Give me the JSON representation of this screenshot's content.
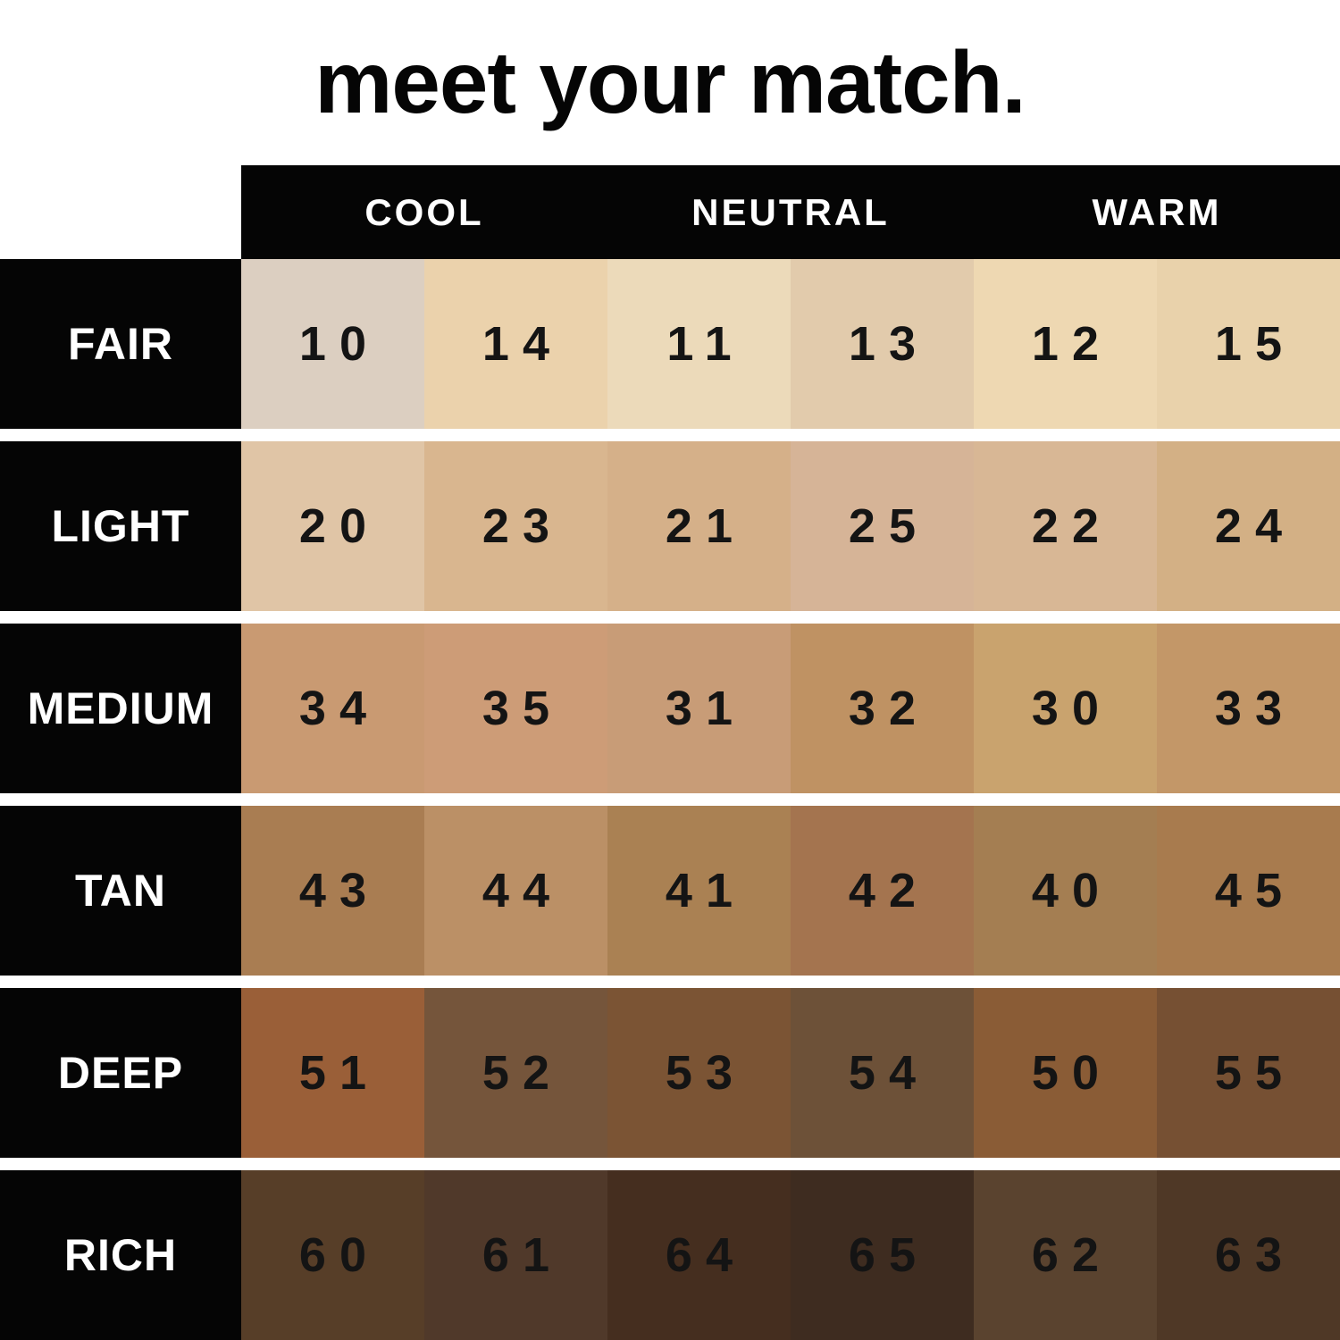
{
  "title": "meet your match.",
  "columns": [
    {
      "label": "COOL"
    },
    {
      "label": "NEUTRAL"
    },
    {
      "label": "WARM"
    }
  ],
  "rows": [
    {
      "label": "FAIR",
      "shades": [
        {
          "number": "10",
          "color": "#dccfc1"
        },
        {
          "number": "14",
          "color": "#ebd2ac"
        },
        {
          "number": "11",
          "color": "#ecdaba"
        },
        {
          "number": "13",
          "color": "#e2cbac"
        },
        {
          "number": "12",
          "color": "#eed8b2"
        },
        {
          "number": "15",
          "color": "#e9d2ab"
        }
      ]
    },
    {
      "label": "LIGHT",
      "shades": [
        {
          "number": "20",
          "color": "#e0c5a6"
        },
        {
          "number": "23",
          "color": "#d9b68f"
        },
        {
          "number": "21",
          "color": "#d5b089"
        },
        {
          "number": "25",
          "color": "#d6b497"
        },
        {
          "number": "22",
          "color": "#d8b795"
        },
        {
          "number": "24",
          "color": "#d3b085"
        }
      ]
    },
    {
      "label": "MEDIUM",
      "shades": [
        {
          "number": "34",
          "color": "#c99a72"
        },
        {
          "number": "35",
          "color": "#cd9c77"
        },
        {
          "number": "31",
          "color": "#c89c77"
        },
        {
          "number": "32",
          "color": "#bf9263"
        },
        {
          "number": "30",
          "color": "#c9a36e"
        },
        {
          "number": "33",
          "color": "#c39768"
        }
      ]
    },
    {
      "label": "TAN",
      "shades": [
        {
          "number": "43",
          "color": "#a97d52"
        },
        {
          "number": "44",
          "color": "#bb9066"
        },
        {
          "number": "41",
          "color": "#aa8153"
        },
        {
          "number": "42",
          "color": "#a4744f"
        },
        {
          "number": "40",
          "color": "#a47e52"
        },
        {
          "number": "45",
          "color": "#a87b4e"
        }
      ]
    },
    {
      "label": "DEEP",
      "shades": [
        {
          "number": "51",
          "color": "#9a5f38"
        },
        {
          "number": "52",
          "color": "#75553b"
        },
        {
          "number": "53",
          "color": "#7b5434"
        },
        {
          "number": "54",
          "color": "#6d5138"
        },
        {
          "number": "50",
          "color": "#8a5c36"
        },
        {
          "number": "55",
          "color": "#765033"
        }
      ]
    },
    {
      "label": "RICH",
      "shades": [
        {
          "number": "60",
          "color": "#573e28"
        },
        {
          "number": "61",
          "color": "#50392a"
        },
        {
          "number": "64",
          "color": "#452e1f"
        },
        {
          "number": "65",
          "color": "#3e2c20"
        },
        {
          "number": "62",
          "color": "#5a432f"
        },
        {
          "number": "63",
          "color": "#4f3826"
        }
      ]
    }
  ],
  "chart_data": {
    "type": "table",
    "title": "meet your match.",
    "column_groups": [
      "COOL",
      "NEUTRAL",
      "WARM"
    ],
    "row_labels": [
      "FAIR",
      "LIGHT",
      "MEDIUM",
      "TAN",
      "DEEP",
      "RICH"
    ],
    "cell_numbers": [
      [
        "10",
        "14",
        "11",
        "13",
        "12",
        "15"
      ],
      [
        "20",
        "23",
        "21",
        "25",
        "22",
        "24"
      ],
      [
        "34",
        "35",
        "31",
        "32",
        "30",
        "33"
      ],
      [
        "43",
        "44",
        "41",
        "42",
        "40",
        "45"
      ],
      [
        "51",
        "52",
        "53",
        "54",
        "50",
        "55"
      ],
      [
        "60",
        "61",
        "64",
        "65",
        "62",
        "63"
      ]
    ],
    "cell_colors": [
      [
        "#dccfc1",
        "#ebd2ac",
        "#ecdaba",
        "#e2cbac",
        "#eed8b2",
        "#e9d2ab"
      ],
      [
        "#e0c5a6",
        "#d9b68f",
        "#d5b089",
        "#d6b497",
        "#d8b795",
        "#d3b085"
      ],
      [
        "#c99a72",
        "#cd9c77",
        "#c89c77",
        "#bf9263",
        "#c9a36e",
        "#c39768"
      ],
      [
        "#a97d52",
        "#bb9066",
        "#aa8153",
        "#a4744f",
        "#a47e52",
        "#a87b4e"
      ],
      [
        "#9a5f38",
        "#75553b",
        "#7b5434",
        "#6d5138",
        "#8a5c36",
        "#765033"
      ],
      [
        "#573e28",
        "#50392a",
        "#452e1f",
        "#3e2c20",
        "#5a432f",
        "#4f3826"
      ]
    ],
    "layout": "each column group (COOL/NEUTRAL/WARM) spans two swatch columns; row label blocks and header bar are black with white text"
  },
  "colors": {
    "background": "#ffffff",
    "header_bar": "#050505",
    "header_text": "#ffffff",
    "row_label_block": "#050505",
    "row_label_text": "#ffffff",
    "shade_number_text": "#141414",
    "title_text": "#050505"
  }
}
